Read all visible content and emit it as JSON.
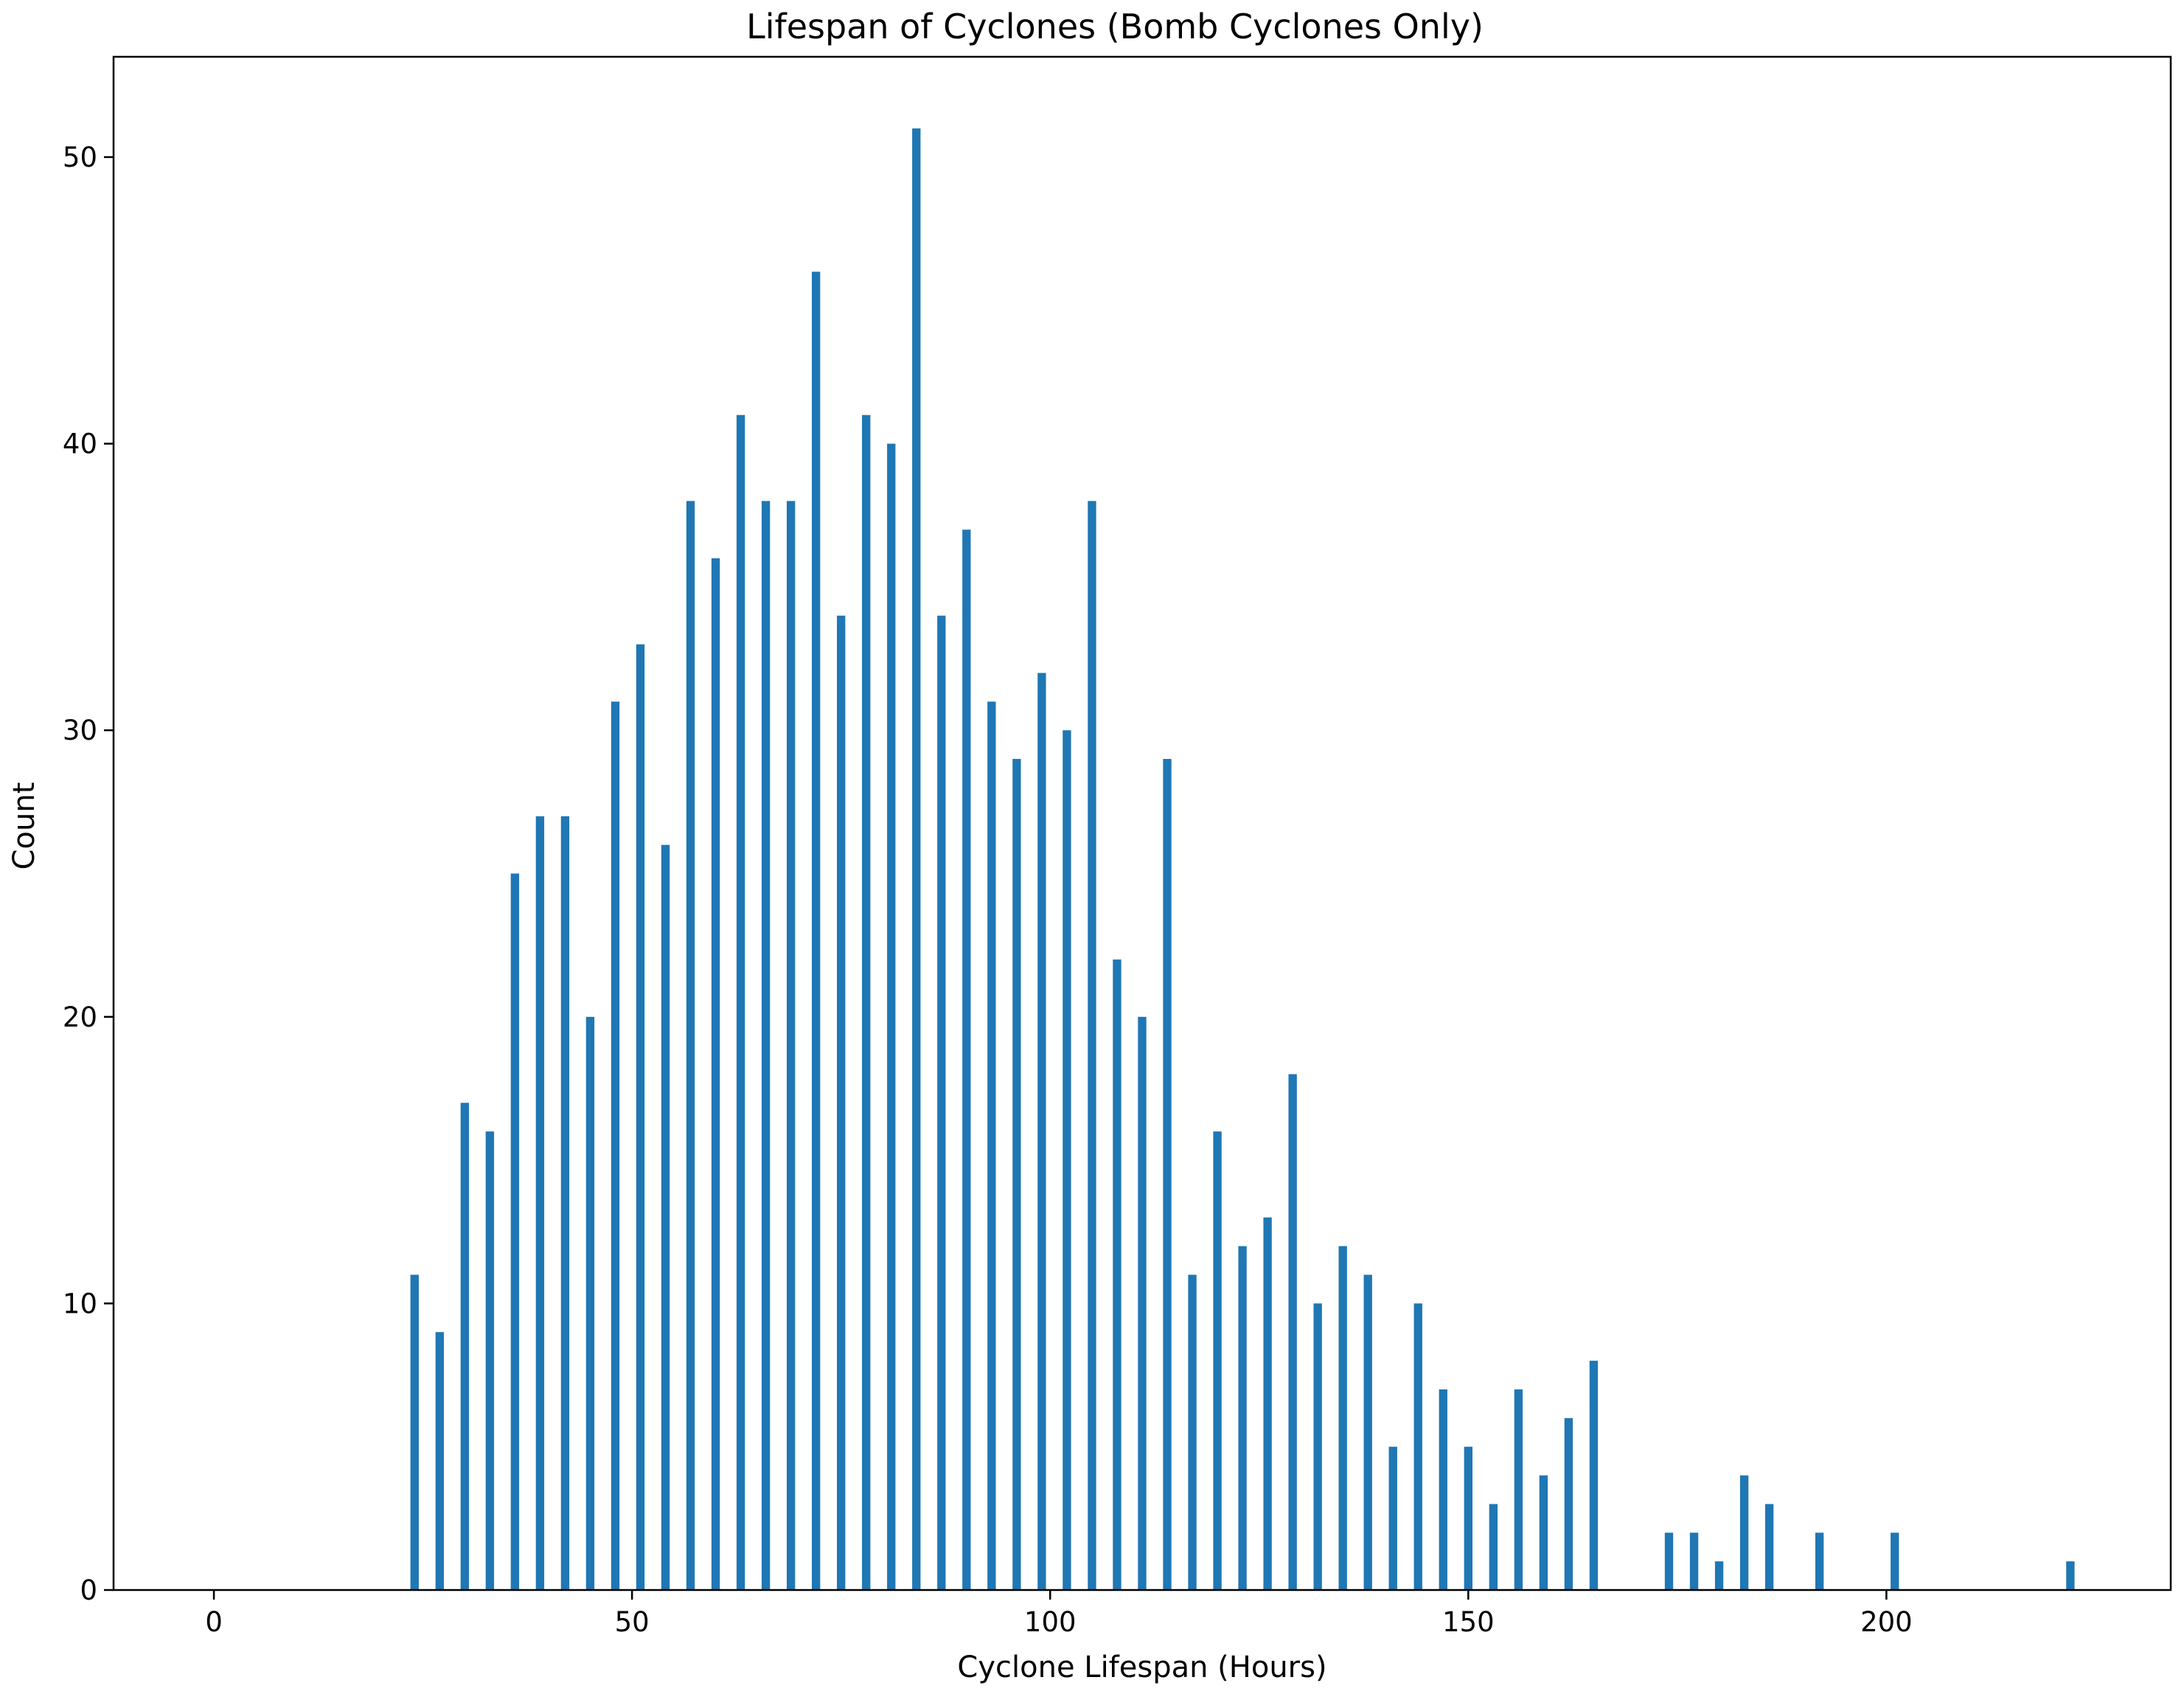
{
  "chart_data": {
    "type": "bar",
    "title": "Lifespan of Cyclones (Bomb Cyclones Only)",
    "xlabel": "Cyclone Lifespan (Hours)",
    "ylabel": "Count",
    "xlim": [
      -12,
      234
    ],
    "ylim": [
      0,
      53.5
    ],
    "xticks": [
      0,
      50,
      100,
      150,
      200
    ],
    "yticks": [
      0,
      10,
      20,
      30,
      40,
      50
    ],
    "grid": false,
    "bar_color": "#1f77b4",
    "bar_width": 1,
    "x": [
      24,
      27,
      30,
      33,
      36,
      39,
      42,
      45,
      48,
      51,
      54,
      57,
      60,
      63,
      66,
      69,
      72,
      75,
      78,
      81,
      84,
      87,
      90,
      93,
      96,
      99,
      102,
      105,
      108,
      111,
      114,
      117,
      120,
      123,
      126,
      129,
      132,
      135,
      138,
      141,
      144,
      147,
      150,
      153,
      156,
      159,
      162,
      165,
      174,
      177,
      180,
      183,
      186,
      192,
      201,
      222
    ],
    "values": [
      11,
      9,
      17,
      16,
      25,
      27,
      27,
      20,
      31,
      33,
      26,
      38,
      36,
      41,
      38,
      38,
      46,
      34,
      41,
      40,
      51,
      34,
      37,
      31,
      29,
      32,
      30,
      38,
      22,
      20,
      29,
      11,
      16,
      12,
      13,
      18,
      10,
      12,
      11,
      5,
      10,
      7,
      5,
      3,
      7,
      4,
      6,
      8,
      2,
      2,
      1,
      4,
      3,
      2,
      2,
      1
    ]
  }
}
